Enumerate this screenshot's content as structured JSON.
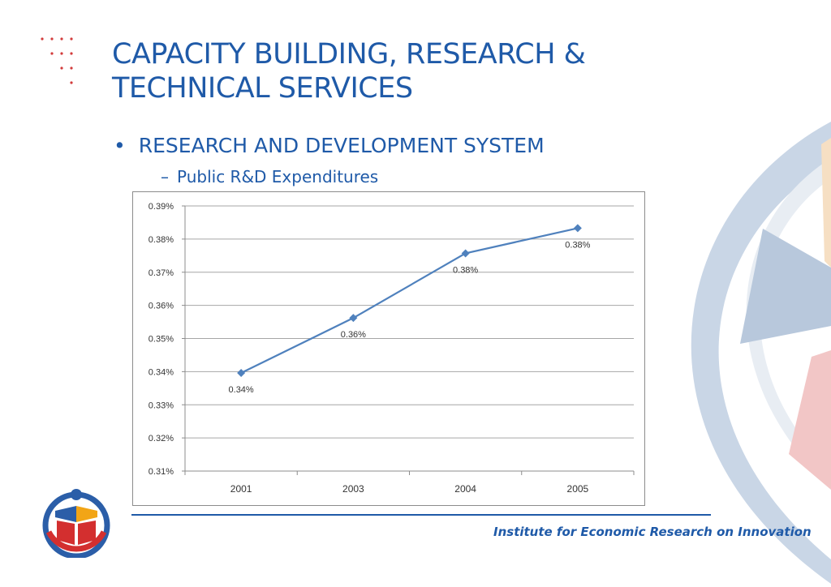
{
  "title_line1": "CAPACITY BUILDING, RESEARCH &",
  "title_line2": "TECHNICAL SERVICES",
  "bullet": {
    "marker": "•",
    "text": "RESEARCH AND DEVELOPMENT SYSTEM"
  },
  "subbullet": {
    "marker": "–",
    "text": "Public R&D Expenditures"
  },
  "footer": "Institute for Economic Research on Innovation",
  "colors": {
    "accent": "#1f5aa8",
    "line": "#4f81bd",
    "dots": "#d23b3b"
  },
  "chart_data": {
    "type": "line",
    "categories": [
      "2001",
      "2003",
      "2004",
      "2005"
    ],
    "values": [
      0.3396,
      0.3562,
      0.3757,
      0.3833
    ],
    "data_labels": [
      "0.34%",
      "0.36%",
      "0.38%",
      "0.38%"
    ],
    "y_ticks": [
      "0.31%",
      "0.32%",
      "0.33%",
      "0.34%",
      "0.35%",
      "0.36%",
      "0.37%",
      "0.38%",
      "0.39%"
    ],
    "ylim": [
      0.31,
      0.39
    ],
    "grid": true
  }
}
